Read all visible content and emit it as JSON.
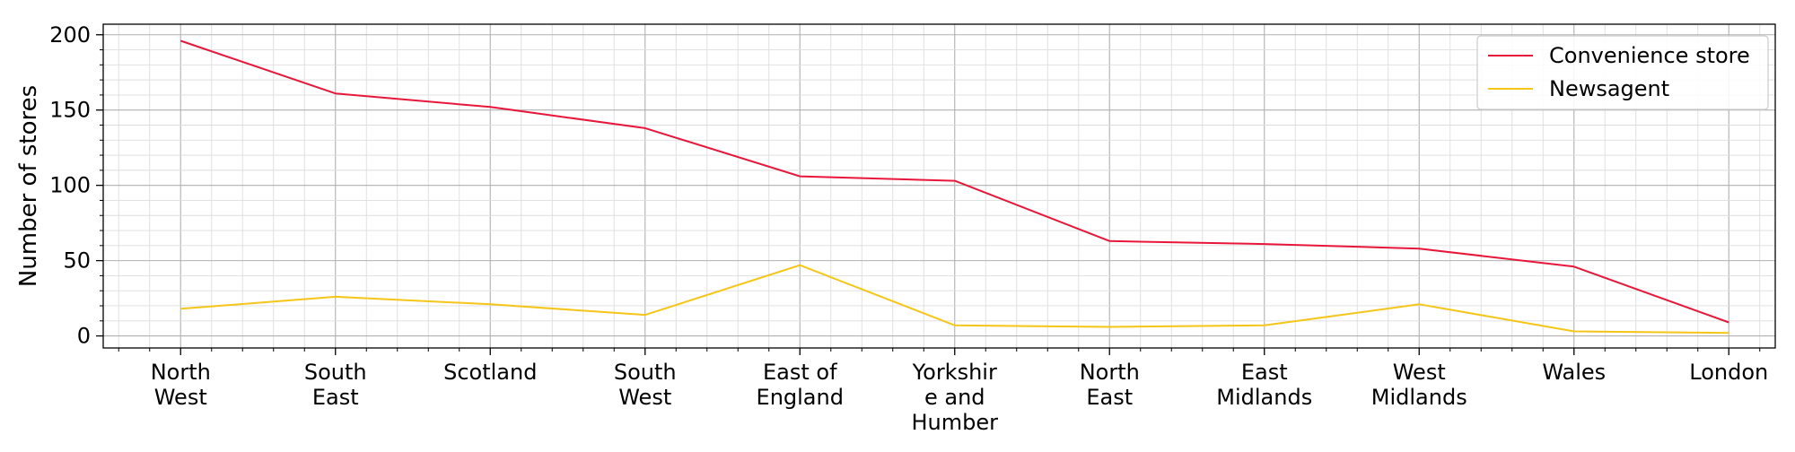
{
  "chart_data": {
    "type": "line",
    "categories": [
      "North West",
      "South East",
      "Scotland",
      "South West",
      "East of England",
      "Yorkshire and Humber",
      "North East",
      "East Midlands",
      "West Midlands",
      "Wales",
      "London"
    ],
    "category_labels": [
      [
        "North",
        "West"
      ],
      [
        "South",
        "East"
      ],
      [
        "Scotland"
      ],
      [
        "South",
        "West"
      ],
      [
        "East of",
        "England"
      ],
      [
        "Yorkshir",
        "e and",
        "Humber"
      ],
      [
        "North",
        "East"
      ],
      [
        "East",
        "Midlands"
      ],
      [
        "West",
        "Midlands"
      ],
      [
        "Wales"
      ],
      [
        "London"
      ]
    ],
    "series": [
      {
        "name": "Convenience store",
        "color": "#e8173a",
        "values": [
          196,
          161,
          152,
          138,
          106,
          103,
          63,
          61,
          58,
          46,
          9
        ]
      },
      {
        "name": "Newsagent",
        "color": "#f5c518",
        "values": [
          18,
          26,
          21,
          14,
          47,
          7,
          6,
          7,
          21,
          3,
          2
        ]
      }
    ],
    "xlabel": "",
    "ylabel": "Number of stores",
    "ylim": [
      -8,
      207
    ],
    "yticks": [
      0,
      50,
      100,
      150,
      200
    ],
    "grid": true,
    "minor_grid": true,
    "legend_position": "top-right"
  }
}
